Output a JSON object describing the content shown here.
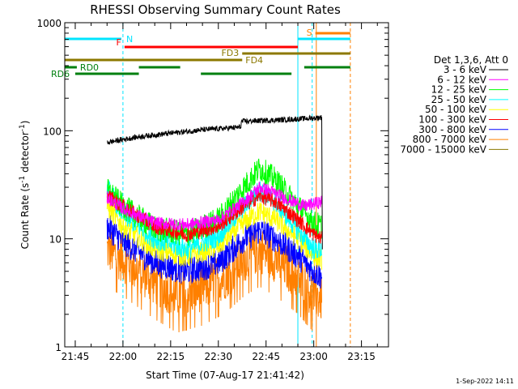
{
  "colors": {
    "background": "#ffffff",
    "axis": "#000000",
    "cyan": "#00e5ff",
    "orange": "#ff8000",
    "red": "#ff0000",
    "olive": "#8c7800",
    "green": "#00800f"
  },
  "footer": {
    "date_label": "1-Sep-2022 14:11"
  },
  "chart_data": {
    "type": "line",
    "title": "RHESSI Observing Summary Count Rates",
    "xlabel": "Start Time (07-Aug-17 21:41:42)",
    "ylabel_main": "Count Rate (s",
    "ylabel_sup1": "-1",
    "ylabel_mid": " detector",
    "ylabel_sup2": "-1",
    "ylabel_end": ")",
    "y_scale": "log",
    "ylim": [
      1,
      1000
    ],
    "xlim_minutes": [
      -18.3,
      83.5
    ],
    "x_tick_minutes": [
      -15,
      0,
      15,
      30,
      45,
      60,
      75
    ],
    "x_tick_labels": [
      "21:45",
      "22:00",
      "22:15",
      "22:30",
      "22:45",
      "23:00",
      "23:15"
    ],
    "y_tick_values": [
      1,
      10,
      100,
      1000
    ],
    "y_tick_labels": [
      "1",
      "10",
      "100",
      "1000"
    ],
    "legend": {
      "header": "Det 1,3,6, Att 0",
      "placement": "right",
      "entries": [
        {
          "label": "3 - 6 keV",
          "color": "#000000"
        },
        {
          "label": "6 - 12 keV",
          "color": "#ff00ff"
        },
        {
          "label": "12 - 25 keV",
          "color": "#00ff00"
        },
        {
          "label": "25 - 50 keV",
          "color": "#00ffff"
        },
        {
          "label": "50 - 100 keV",
          "color": "#ffff00"
        },
        {
          "label": "100 - 300 keV",
          "color": "#ff0000"
        },
        {
          "label": "300 - 800 keV",
          "color": "#0000ff"
        },
        {
          "label": "800 - 7000 keV",
          "color": "#ff8000"
        },
        {
          "label": "7000 - 15000 keV",
          "color": "#8c7800"
        }
      ]
    },
    "series": [
      {
        "name": "3 - 6 keV",
        "color": "#000000",
        "noise": 0.025,
        "points": [
          [
            -5,
            78
          ],
          [
            5,
            88
          ],
          [
            15,
            95
          ],
          [
            25,
            102
          ],
          [
            37,
            108
          ],
          [
            37.3,
            122
          ],
          [
            50,
            126
          ],
          [
            60,
            131
          ],
          [
            62.5,
            133
          ],
          [
            62.7,
            8
          ]
        ]
      },
      {
        "name": "6 - 12 keV",
        "color": "#ff00ff",
        "noise": 0.06,
        "points": [
          [
            -5,
            24
          ],
          [
            0,
            19
          ],
          [
            10,
            14
          ],
          [
            20,
            13.5
          ],
          [
            30,
            15
          ],
          [
            38,
            22
          ],
          [
            43,
            30
          ],
          [
            46,
            28
          ],
          [
            52,
            23
          ],
          [
            57,
            20
          ],
          [
            62.5,
            22
          ]
        ]
      },
      {
        "name": "12 - 25 keV",
        "color": "#00ff00",
        "noise": 0.12,
        "points": [
          [
            -5,
            28
          ],
          [
            0,
            20
          ],
          [
            10,
            12.5
          ],
          [
            20,
            11
          ],
          [
            30,
            15
          ],
          [
            38,
            30
          ],
          [
            43,
            45
          ],
          [
            48,
            35
          ],
          [
            55,
            20
          ],
          [
            60,
            14
          ],
          [
            62.5,
            13
          ]
        ]
      },
      {
        "name": "25 - 50 keV",
        "color": "#00ffff",
        "noise": 0.1,
        "points": [
          [
            -5,
            30
          ],
          [
            0,
            17
          ],
          [
            10,
            10
          ],
          [
            20,
            8
          ],
          [
            30,
            10.5
          ],
          [
            38,
            20
          ],
          [
            43,
            28
          ],
          [
            48,
            22
          ],
          [
            55,
            12
          ],
          [
            60,
            8
          ],
          [
            62.5,
            8
          ]
        ]
      },
      {
        "name": "50 - 100 keV",
        "color": "#ffff00",
        "noise": 0.1,
        "points": [
          [
            -5,
            20
          ],
          [
            0,
            13
          ],
          [
            10,
            8
          ],
          [
            20,
            6.8
          ],
          [
            30,
            8.5
          ],
          [
            38,
            14
          ],
          [
            43,
            18
          ],
          [
            48,
            15
          ],
          [
            55,
            10
          ],
          [
            60,
            7
          ],
          [
            62.5,
            6.5
          ]
        ]
      },
      {
        "name": "100 - 300 keV",
        "color": "#ff0000",
        "noise": 0.07,
        "points": [
          [
            -5,
            25
          ],
          [
            0,
            20
          ],
          [
            10,
            13
          ],
          [
            20,
            11
          ],
          [
            30,
            13
          ],
          [
            38,
            20
          ],
          [
            43,
            25
          ],
          [
            48,
            22
          ],
          [
            55,
            15
          ],
          [
            60,
            11
          ],
          [
            62.5,
            10
          ]
        ]
      },
      {
        "name": "300 - 800 keV",
        "color": "#0000ff",
        "noise": 0.13,
        "points": [
          [
            -5,
            13
          ],
          [
            0,
            9.5
          ],
          [
            10,
            6
          ],
          [
            20,
            5
          ],
          [
            30,
            6
          ],
          [
            38,
            10
          ],
          [
            43,
            12
          ],
          [
            48,
            10
          ],
          [
            55,
            7
          ],
          [
            60,
            5
          ],
          [
            62.5,
            4.5
          ]
        ]
      },
      {
        "name": "800 - 7000 keV",
        "color": "#ff8000",
        "noise": 0.22,
        "points": [
          [
            -5,
            8
          ],
          [
            0,
            6.5
          ],
          [
            10,
            4
          ],
          [
            17,
            3
          ],
          [
            25,
            3.5
          ],
          [
            32,
            4.5
          ],
          [
            38,
            6.5
          ],
          [
            43,
            8
          ],
          [
            48,
            6.5
          ],
          [
            55,
            4.5
          ],
          [
            60,
            3
          ],
          [
            62.5,
            2.8
          ]
        ]
      }
    ],
    "vertical_markers": [
      {
        "x": -18.3,
        "color": "#00e5ff",
        "style": "solid"
      },
      {
        "x": 0,
        "color": "#00e5ff",
        "style": "dashed"
      },
      {
        "x": 55,
        "color": "#00e5ff",
        "style": "solid"
      },
      {
        "x": 59.5,
        "color": "#00e5ff",
        "style": "dashed"
      },
      {
        "x": 60.8,
        "color": "#ff8000",
        "style": "solid"
      },
      {
        "x": 71.5,
        "color": "#ff8000",
        "style": "dashed"
      }
    ],
    "flag_bars": [
      {
        "name": "N",
        "label": "N",
        "color": "#00e5ff",
        "y": 1,
        "label_side": "after",
        "segments": [
          [
            -18.3,
            -0.5
          ],
          [
            55,
            71.5
          ]
        ]
      },
      {
        "name": "S",
        "label": "S",
        "color": "#ff8000",
        "y": 0,
        "label_side": "before",
        "segments": [
          [
            60.5,
            71.5
          ]
        ]
      },
      {
        "name": "F",
        "label": "F",
        "color": "#ff0000",
        "y": 2,
        "label_side": "before",
        "segments": [
          [
            0.5,
            55
          ]
        ]
      },
      {
        "name": "FD3",
        "label": "FD3",
        "color": "#8c7800",
        "y": 3,
        "label_side": "before",
        "segments": [
          [
            37.5,
            71.5
          ]
        ]
      },
      {
        "name": "FD4",
        "label": "FD4",
        "color": "#8c7800",
        "y": 4,
        "label_side": "after",
        "segments": [
          [
            -18.3,
            37.5
          ]
        ]
      },
      {
        "name": "RD0",
        "label": "RD0",
        "color": "#00800f",
        "y": 5,
        "label_side": "after",
        "segments": [
          [
            -18.3,
            -14.5
          ],
          [
            5,
            18
          ],
          [
            57,
            71.5
          ]
        ]
      },
      {
        "name": "RD6",
        "label": "RD6",
        "color": "#00800f",
        "y": 6,
        "label_side": "after",
        "segments": [
          [
            -15,
            5
          ],
          [
            24.5,
            53
          ]
        ]
      }
    ]
  }
}
